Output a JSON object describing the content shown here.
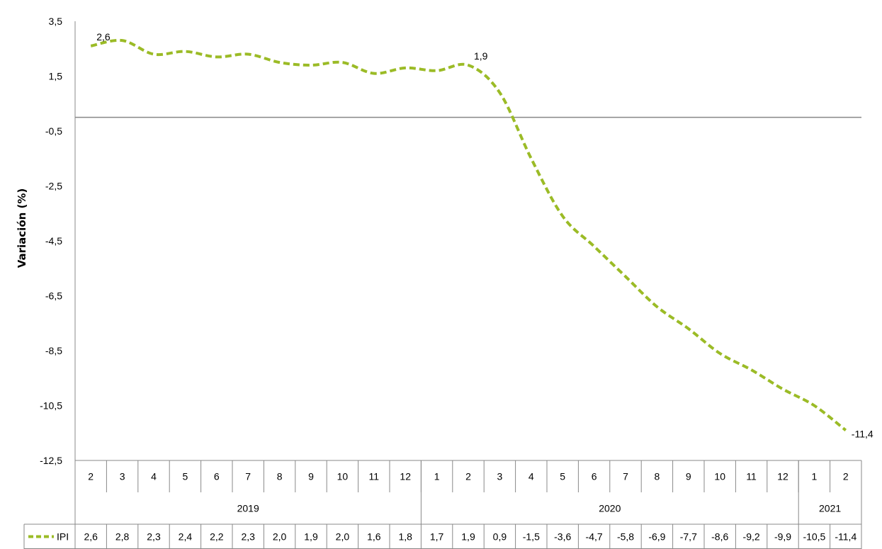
{
  "chart_data": {
    "type": "line",
    "title": "",
    "ylabel": "Variación (%)",
    "ylim": [
      -12.5,
      3.5
    ],
    "yticks": [
      "3,5",
      "1,5",
      "-0,5",
      "-2,5",
      "-4,5",
      "-6,5",
      "-8,5",
      "-10,5",
      "-12,5"
    ],
    "yticks_values": [
      3.5,
      1.5,
      -0.5,
      -2.5,
      -4.5,
      -6.5,
      -8.5,
      -10.5,
      -12.5
    ],
    "grid": false,
    "reference_line": 0,
    "months": [
      "2",
      "3",
      "4",
      "5",
      "6",
      "7",
      "8",
      "9",
      "10",
      "11",
      "12",
      "1",
      "2",
      "3",
      "4",
      "5",
      "6",
      "7",
      "8",
      "9",
      "10",
      "11",
      "12",
      "1",
      "2"
    ],
    "years": [
      {
        "label": "2019",
        "count": 11
      },
      {
        "label": "2020",
        "count": 12
      },
      {
        "label": "2021",
        "count": 2
      }
    ],
    "series": [
      {
        "name": "IPI",
        "color": "#9bbb26",
        "style": "dashed",
        "values": [
          2.6,
          2.8,
          2.3,
          2.4,
          2.2,
          2.3,
          2.0,
          1.9,
          2.0,
          1.6,
          1.8,
          1.7,
          1.9,
          0.9,
          -1.5,
          -3.6,
          -4.7,
          -5.8,
          -6.9,
          -7.7,
          -8.6,
          -9.2,
          -9.9,
          -10.5,
          -11.4
        ],
        "table_values": [
          "2,6",
          "2,8",
          "2,3",
          "2,4",
          "2,2",
          "2,3",
          "2,0",
          "1,9",
          "2,0",
          "1,6",
          "1,8",
          "1,7",
          "1,9",
          "0,9",
          "-1,5",
          "-3,6",
          "-4,7",
          "-5,8",
          "-6,9",
          "-7,7",
          "-8,6",
          "-9,2",
          "-9,9",
          "-10,5",
          "-11,4"
        ]
      }
    ],
    "annotations": [
      {
        "index": 0,
        "text": "2,6"
      },
      {
        "index": 12,
        "text": "1,9"
      },
      {
        "index": 24,
        "text": "-11,4"
      }
    ]
  }
}
